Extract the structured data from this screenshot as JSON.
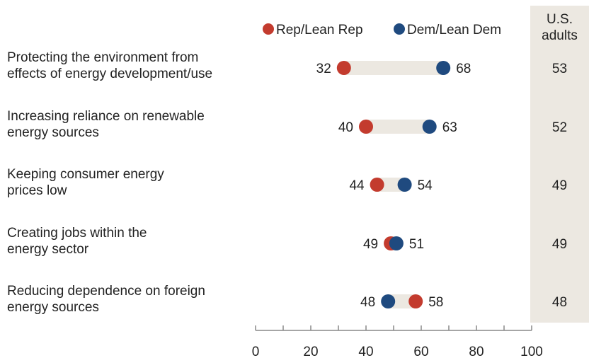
{
  "chart_data": {
    "type": "dot",
    "legend": [
      {
        "name": "Rep/Lean Rep",
        "color": "#c33b2e"
      },
      {
        "name": "Dem/Lean Dem",
        "color": "#1f4a7f"
      }
    ],
    "categories": [
      "Protecting  the environment from|effects of energy development/use",
      "Increasing reliance on renewable|energy sources",
      "Keeping consumer energy|prices low",
      "Creating jobs within the|energy sector",
      "Reducing dependence on foreign|energy sources"
    ],
    "series": [
      {
        "name": "Rep/Lean Rep",
        "values": [
          32,
          40,
          44,
          49,
          58
        ]
      },
      {
        "name": "Dem/Lean Dem",
        "values": [
          68,
          63,
          54,
          51,
          48
        ]
      }
    ],
    "us_adults": {
      "header": "U.S.|adults",
      "values": [
        53,
        52,
        49,
        49,
        48
      ]
    },
    "xlim": [
      0,
      100
    ],
    "xticks": [
      0,
      20,
      40,
      60,
      80,
      100
    ],
    "colors": {
      "rep": "#c33b2e",
      "dem": "#1f4a7f",
      "range_bar": "#ece8e1",
      "column_bg": "#ece8e1",
      "axis": "#888888"
    }
  }
}
